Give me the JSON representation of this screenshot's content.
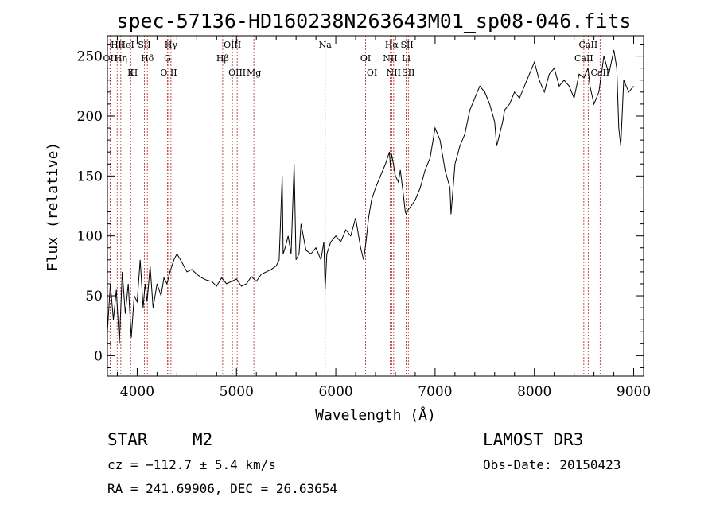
{
  "chart_data": {
    "type": "line",
    "title": "spec-57136-HD160238N263643M01_sp08-046.fits",
    "xlabel": "Wavelength (Å)",
    "ylabel": "Flux (relative)",
    "xlim": [
      3700,
      9100
    ],
    "ylim": [
      -17,
      267
    ],
    "x_ticks": [
      4000,
      5000,
      6000,
      7000,
      8000,
      9000
    ],
    "y_ticks": [
      0,
      50,
      100,
      150,
      200,
      250
    ],
    "spectral_lines": [
      {
        "label": "Hθ",
        "wavelength": 3798
      },
      {
        "label": "OII",
        "wavelength": 3727
      },
      {
        "label": "K",
        "wavelength": 3934
      },
      {
        "label": "HeI",
        "wavelength": 3889
      },
      {
        "label": "Hη",
        "wavelength": 3835
      },
      {
        "label": "H",
        "wavelength": 3968
      },
      {
        "label": "SII",
        "wavelength": 4072
      },
      {
        "label": "Hδ",
        "wavelength": 4102
      },
      {
        "label": "O II",
        "wavelength": 4317
      },
      {
        "label": "Hγ",
        "wavelength": 4340
      },
      {
        "label": "G",
        "wavelength": 4305
      },
      {
        "label": "OIII",
        "wavelength": 5007
      },
      {
        "label": "OIII",
        "wavelength": 4959
      },
      {
        "label": "Hβ",
        "wavelength": 4861
      },
      {
        "label": "Mg",
        "wavelength": 5175
      },
      {
        "label": "Na",
        "wavelength": 5893
      },
      {
        "label": "OI",
        "wavelength": 6300
      },
      {
        "label": "OI",
        "wavelength": 6364
      },
      {
        "label": "Hα",
        "wavelength": 6563
      },
      {
        "label": "NII",
        "wavelength": 6548
      },
      {
        "label": "NII",
        "wavelength": 6583
      },
      {
        "label": "SII",
        "wavelength": 6717
      },
      {
        "label": "Li",
        "wavelength": 6708
      },
      {
        "label": "SII",
        "wavelength": 6731
      },
      {
        "label": "CaII",
        "wavelength": 8542
      },
      {
        "label": "CaII",
        "wavelength": 8498
      },
      {
        "label": "CaII",
        "wavelength": 8662
      }
    ],
    "series": [
      {
        "name": "flux",
        "x": [
          3700,
          3730,
          3760,
          3790,
          3820,
          3850,
          3880,
          3910,
          3940,
          3970,
          4000,
          4030,
          4060,
          4080,
          4100,
          4130,
          4160,
          4200,
          4240,
          4270,
          4300,
          4330,
          4350,
          4370,
          4400,
          4450,
          4500,
          4550,
          4600,
          4650,
          4700,
          4750,
          4800,
          4850,
          4900,
          4950,
          5000,
          5050,
          5100,
          5150,
          5200,
          5250,
          5300,
          5350,
          5400,
          5430,
          5460,
          5470,
          5490,
          5520,
          5550,
          5580,
          5600,
          5630,
          5650,
          5700,
          5750,
          5800,
          5850,
          5880,
          5893,
          5910,
          5950,
          6000,
          6050,
          6100,
          6150,
          6200,
          6250,
          6280,
          6300,
          6330,
          6360,
          6400,
          6450,
          6500,
          6520,
          6540,
          6550,
          6563,
          6580,
          6600,
          6630,
          6650,
          6680,
          6700,
          6710,
          6730,
          6760,
          6800,
          6850,
          6900,
          6950,
          7000,
          7050,
          7100,
          7150,
          7160,
          7200,
          7250,
          7300,
          7350,
          7400,
          7450,
          7500,
          7550,
          7600,
          7620,
          7650,
          7680,
          7700,
          7750,
          7800,
          7850,
          7900,
          7950,
          8000,
          8050,
          8100,
          8150,
          8200,
          8250,
          8300,
          8350,
          8400,
          8450,
          8500,
          8540,
          8560,
          8600,
          8650,
          8700,
          8750,
          8800,
          8830,
          8850,
          8870,
          8900,
          8950,
          9000
        ],
        "values": [
          20,
          60,
          30,
          55,
          10,
          70,
          35,
          60,
          15,
          50,
          45,
          80,
          40,
          60,
          45,
          75,
          40,
          60,
          50,
          65,
          60,
          70,
          75,
          80,
          85,
          78,
          70,
          72,
          68,
          65,
          63,
          62,
          58,
          65,
          60,
          62,
          64,
          58,
          60,
          66,
          62,
          68,
          70,
          72,
          75,
          80,
          150,
          85,
          90,
          100,
          85,
          160,
          80,
          85,
          110,
          88,
          85,
          90,
          80,
          95,
          55,
          85,
          95,
          100,
          95,
          105,
          100,
          115,
          90,
          80,
          92,
          115,
          130,
          140,
          150,
          160,
          165,
          170,
          158,
          168,
          160,
          150,
          145,
          155,
          135,
          120,
          118,
          122,
          125,
          130,
          140,
          155,
          165,
          190,
          180,
          155,
          140,
          118,
          160,
          175,
          185,
          205,
          215,
          225,
          220,
          210,
          195,
          175,
          185,
          195,
          205,
          210,
          220,
          215,
          225,
          235,
          245,
          230,
          220,
          235,
          240,
          225,
          230,
          225,
          215,
          235,
          232,
          240,
          225,
          210,
          220,
          250,
          235,
          255,
          240,
          190,
          175,
          230,
          220,
          225
        ]
      }
    ]
  },
  "info": {
    "class_label": "STAR",
    "subclass": "M2",
    "cz": "cz = −112.7 ± 5.4 km/s",
    "coords": "RA = 241.69906, DEC =  26.63654",
    "survey": "LAMOST DR3",
    "obs_date": "Obs-Date: 20150423"
  }
}
